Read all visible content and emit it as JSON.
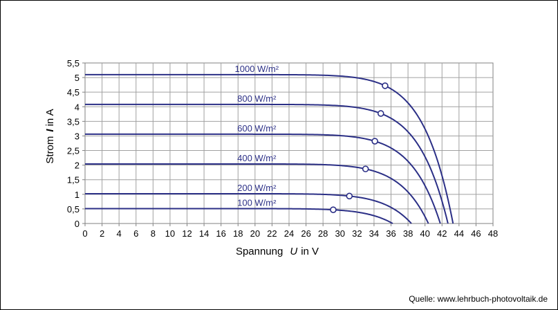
{
  "chart_data": {
    "type": "line",
    "xlabel_prefix": "Spannung",
    "xlabel_symbol": "U",
    "xlabel_suffix": "in V",
    "ylabel_prefix": "Strom",
    "ylabel_symbol": "I",
    "ylabel_suffix": "in A",
    "xlim": [
      0,
      48
    ],
    "ylim": [
      0,
      5.5
    ],
    "x_ticks": [
      "0",
      "2",
      "4",
      "6",
      "8",
      "10",
      "12",
      "14",
      "16",
      "18",
      "20",
      "22",
      "24",
      "26",
      "28",
      "30",
      "32",
      "34",
      "36",
      "38",
      "40",
      "42",
      "44",
      "46",
      "48"
    ],
    "y_ticks": [
      "0",
      "0,5",
      "1",
      "1,5",
      "2",
      "2,5",
      "3",
      "3,5",
      "4",
      "4,5",
      "5",
      "5,5"
    ],
    "grid": true,
    "line_color": "#2b2f86",
    "grid_color": "#a0a0a0",
    "series": [
      {
        "name": "1000 W/m²",
        "isc": 5.1,
        "voc": 43.3,
        "mpp": [
          35.3,
          4.72
        ],
        "label_x": 20.2,
        "label_y": 5.1
      },
      {
        "name": "800 W/m²",
        "isc": 4.08,
        "voc": 42.7,
        "mpp": [
          34.8,
          3.77
        ],
        "label_x": 20.2,
        "label_y": 4.08
      },
      {
        "name": "600 W/m²",
        "isc": 3.06,
        "voc": 41.8,
        "mpp": [
          34.1,
          2.82
        ],
        "label_x": 20.2,
        "label_y": 3.06
      },
      {
        "name": "400 W/m²",
        "isc": 2.04,
        "voc": 40.4,
        "mpp": [
          33.0,
          1.87
        ],
        "label_x": 20.2,
        "label_y": 2.04
      },
      {
        "name": "200 W/m²",
        "isc": 1.02,
        "voc": 38.4,
        "mpp": [
          31.1,
          0.94
        ],
        "label_x": 20.2,
        "label_y": 1.02
      },
      {
        "name": "100 W/m²",
        "isc": 0.51,
        "voc": 36.2,
        "mpp": [
          29.2,
          0.47
        ],
        "label_x": 20.2,
        "label_y": 0.51
      }
    ]
  },
  "source": "Quelle: www.lehrbuch-photovoltaik.de"
}
